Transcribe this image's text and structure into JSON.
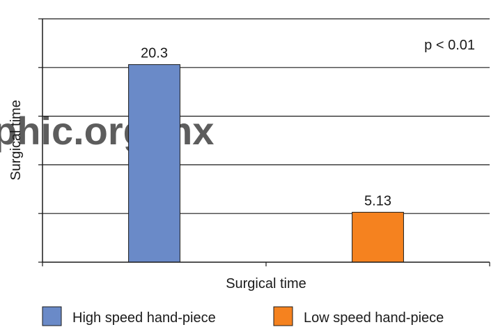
{
  "chart_data": {
    "type": "bar",
    "xlabel": "Surgical time",
    "ylabel": "Surgical time",
    "annotation": "p < 0.01",
    "ylim": [
      0,
      25
    ],
    "y_ticks": [
      0,
      5,
      10,
      15,
      20,
      25
    ],
    "tick_labels_shown": false,
    "grid": true,
    "legend_position": "bottom",
    "series": [
      {
        "name": "High speed hand-piece",
        "value": 20.3,
        "label": "20.3",
        "color": "#6a8ac8"
      },
      {
        "name": "Low speed hand-piece",
        "value": 5.13,
        "label": "5.13",
        "color": "#f5821f"
      }
    ]
  },
  "watermark": "phic.org.mx"
}
